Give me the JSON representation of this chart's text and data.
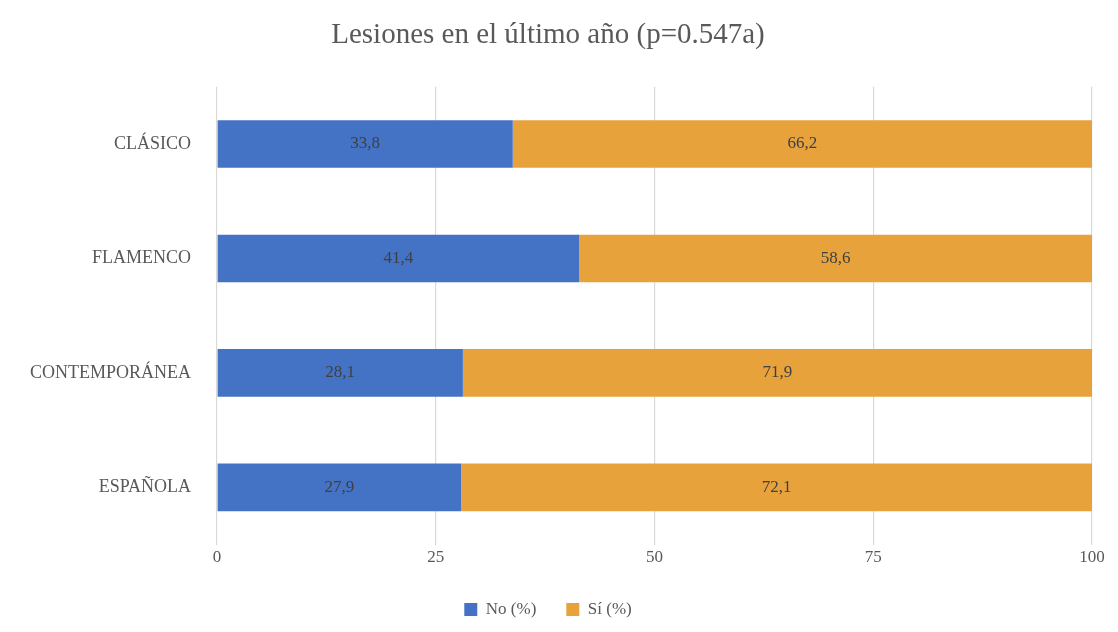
{
  "chart_data": {
    "type": "bar",
    "title": "Lesiones en el último año (p=0.547a)",
    "categories": [
      "CLÁSICO",
      "FLAMENCO",
      "CONTEMPORÁNEA",
      "ESPAÑOLA"
    ],
    "series": [
      {
        "name": "No (%)",
        "color": "#4472c4",
        "values": [
          33.8,
          41.4,
          28.1,
          27.9
        ],
        "value_labels": [
          "33,8",
          "41,4",
          "28,1",
          "27,9"
        ]
      },
      {
        "name": "Sí (%)",
        "color": "#e8a23c",
        "values": [
          66.2,
          58.6,
          71.9,
          72.1
        ],
        "value_labels": [
          "66,2",
          "58,6",
          "71,9",
          "72,1"
        ]
      }
    ],
    "stacked": true,
    "orientation": "horizontal",
    "xlim": [
      0,
      100
    ],
    "xticks": [
      0,
      25,
      50,
      75,
      100
    ],
    "grid": "x",
    "legend": "bottom"
  }
}
